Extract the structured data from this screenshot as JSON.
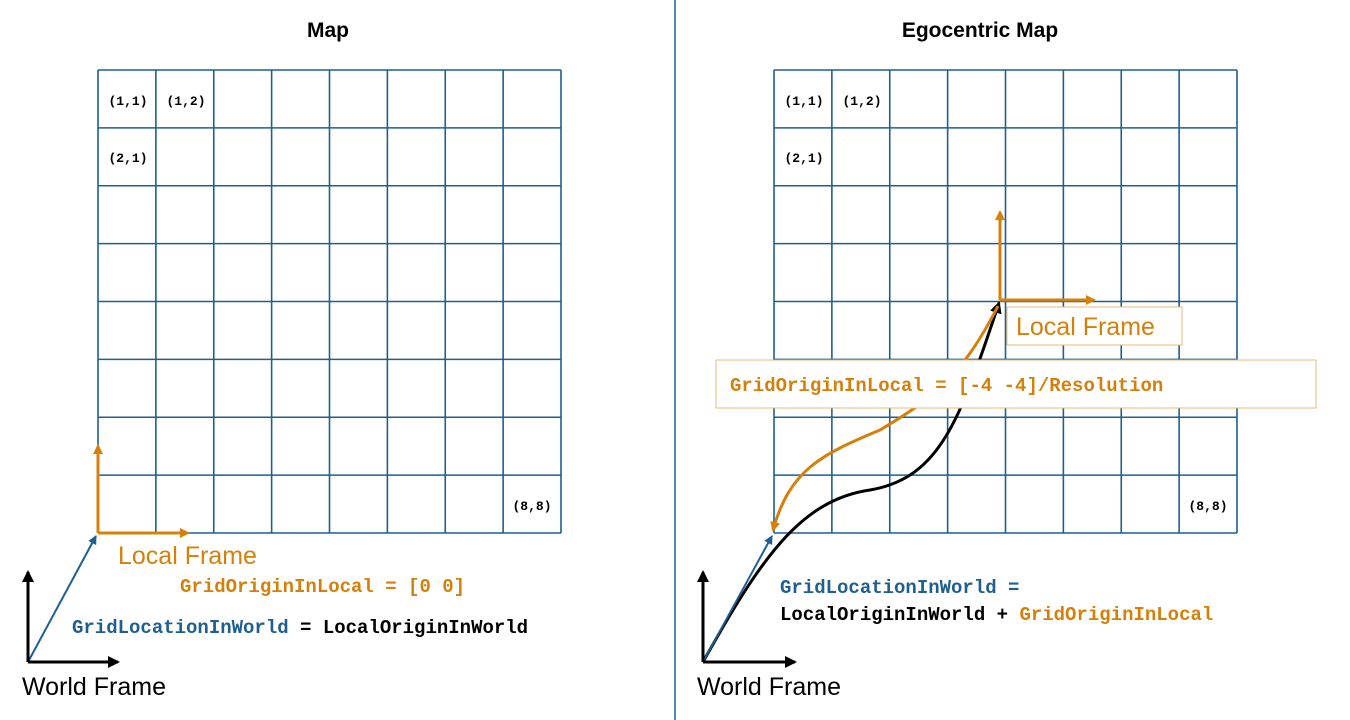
{
  "panels": [
    {
      "title": "Map",
      "cell_labels": [
        "(1,1)",
        "(1,2)",
        "(2,1)",
        "(8,8)"
      ],
      "local_frame": "Local Frame",
      "world_frame": "World Frame",
      "grid_origin_equation": "GridOriginInLocal = [0 0]",
      "grid_location_equation": [
        "GridLocationInWorld",
        " = LocalOriginInWorld"
      ]
    },
    {
      "title": "Egocentric Map",
      "cell_labels": [
        "(1,1)",
        "(1,2)",
        "(2,1)",
        "(8,8)"
      ],
      "local_frame": "Local Frame",
      "world_frame": "World Frame",
      "grid_origin_equation": "GridOriginInLocal = [-4 -4]/Resolution",
      "grid_location_equation": [
        "GridLocationInWorld =",
        "LocalOriginInWorld + ",
        "GridOriginInLocal"
      ]
    }
  ]
}
